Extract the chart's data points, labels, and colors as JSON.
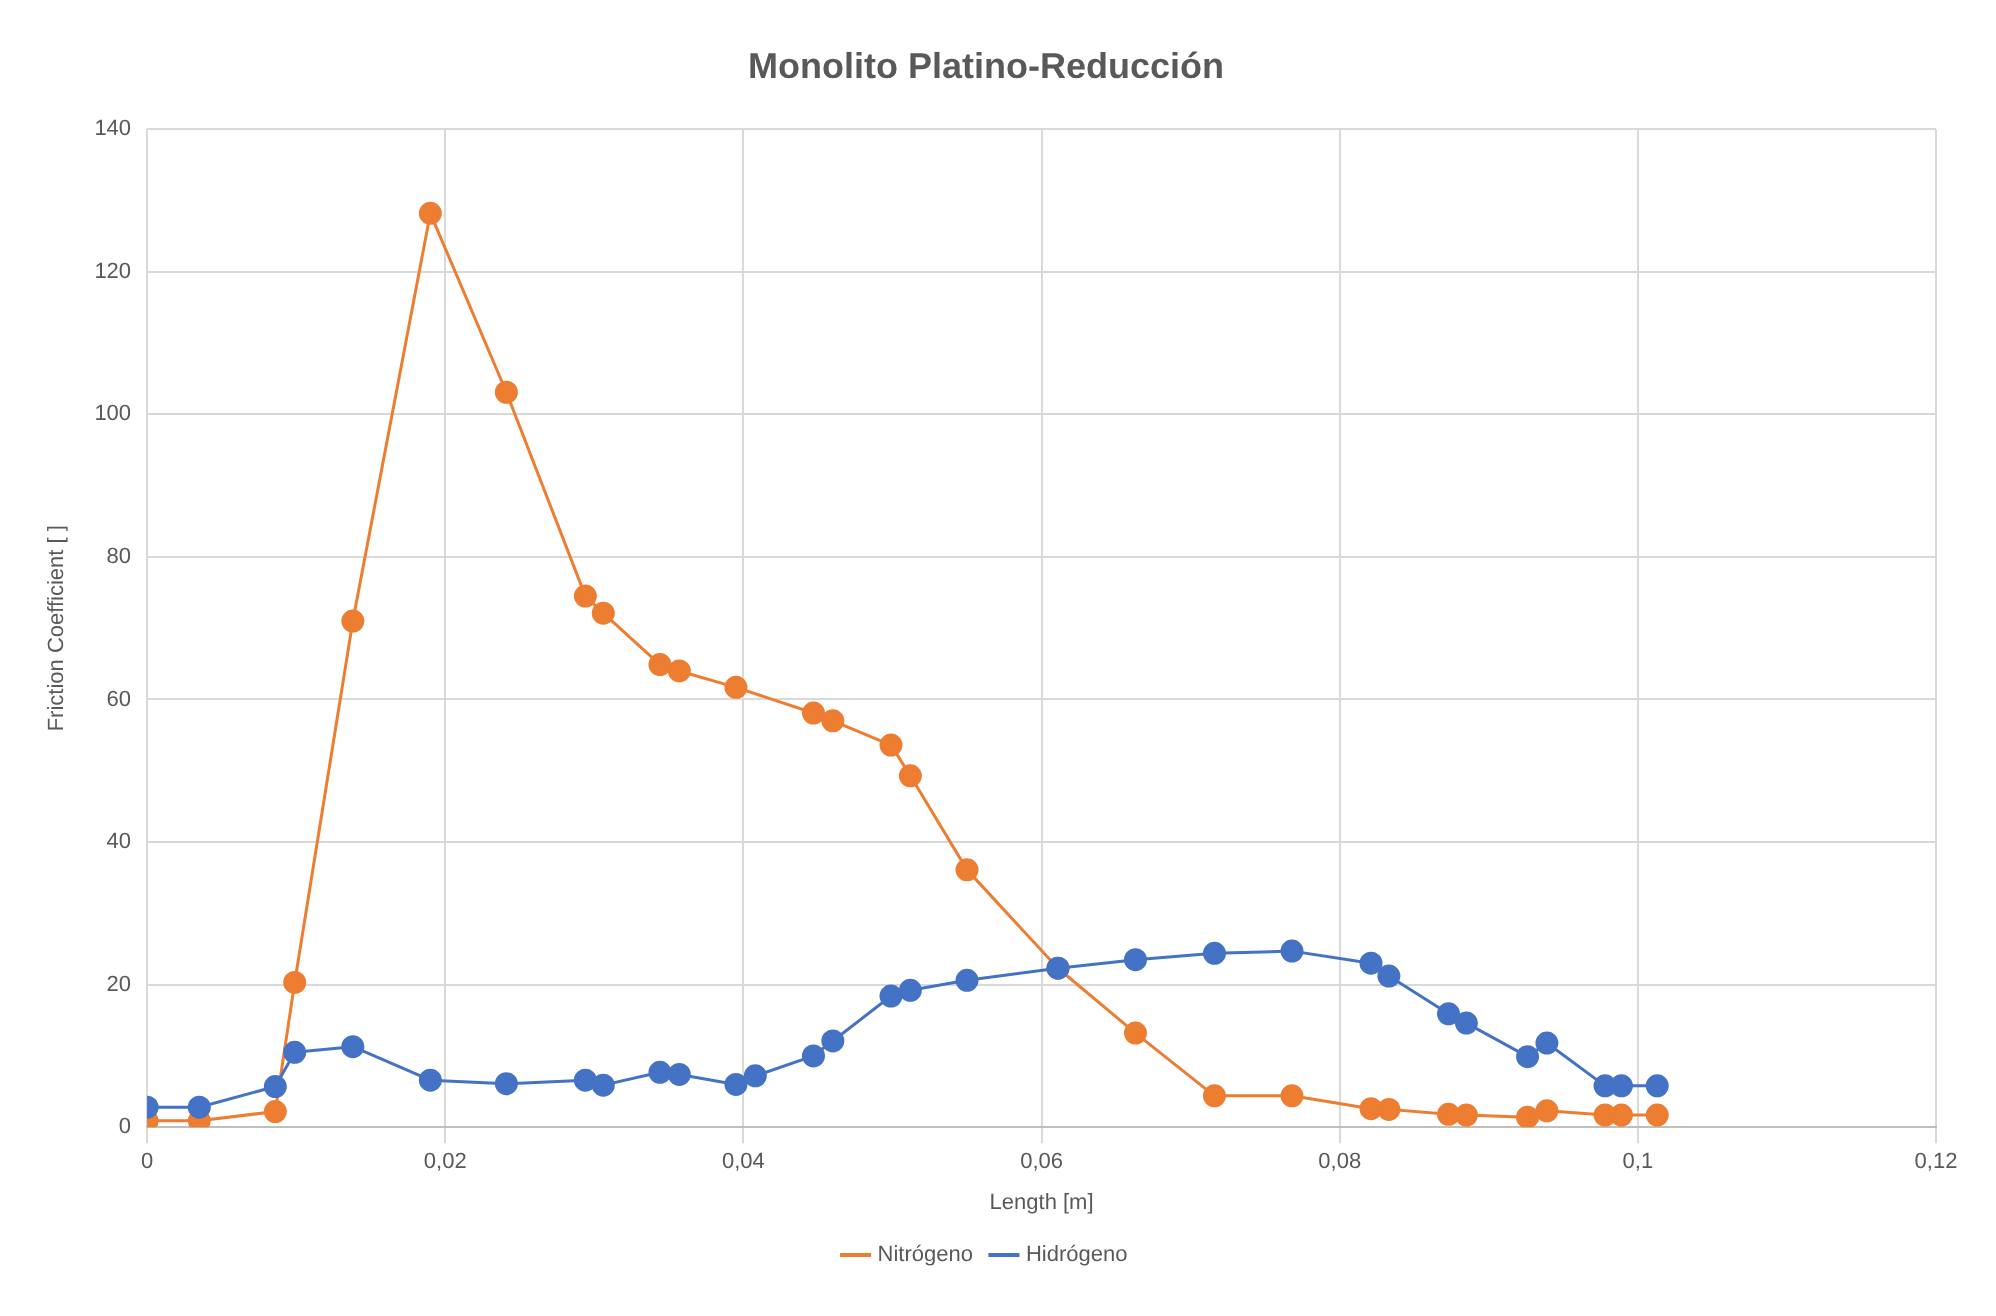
{
  "chart_data": {
    "type": "line",
    "title": "Monolito Platino-Reducción",
    "xlabel": "Length [m]",
    "ylabel": "Friction Coefficient [ ]",
    "xlim": [
      0,
      0.12
    ],
    "xticks": [
      0,
      {
        "value": 0.02,
        "label": "0,02"
      },
      {
        "value": 0.04,
        "label": "0,04"
      },
      {
        "value": 0.06,
        "label": "0,06"
      },
      {
        "value": 0.08,
        "label": "0,08"
      },
      {
        "value": 0.1,
        "label": "0,1"
      },
      {
        "value": 0.12,
        "label": "0,12"
      }
    ],
    "ylim": [
      0,
      140
    ],
    "yticks": [
      0,
      20,
      40,
      60,
      80,
      100,
      120,
      140
    ],
    "grid": true,
    "legend": "bottom",
    "marker": "circle",
    "line_style": "solid",
    "series": [
      {
        "name": "Nitrógeno",
        "color": "#ed7d31",
        "x": [
          0,
          0.0035,
          0.0086,
          0.0099,
          0.0138,
          0.019,
          0.0241,
          0.0294,
          0.0306,
          0.0344,
          0.0357,
          0.0395,
          0.0447,
          0.046,
          0.0499,
          0.0512,
          0.055,
          0.0611,
          0.0663,
          0.0716,
          0.0768,
          0.0821,
          0.0833,
          0.0873,
          0.0885,
          0.0926,
          0.0939,
          0.0978,
          0.0989,
          0.1013
        ],
        "values": [
          0.9,
          0.9,
          2.2,
          20.3,
          71,
          128.2,
          103.1,
          74.5,
          72.1,
          64.9,
          64,
          61.7,
          58.1,
          57,
          53.6,
          49.3,
          36.1,
          22.3,
          13.2,
          4.4,
          4.4,
          2.6,
          2.5,
          1.8,
          1.7,
          1.4,
          2.3,
          1.7,
          1.7,
          1.7
        ]
      },
      {
        "name": "Hidrógeno",
        "color": "#4472c4",
        "x": [
          0,
          0.0035,
          0.0086,
          0.0099,
          0.0138,
          0.019,
          0.0241,
          0.0294,
          0.0306,
          0.0344,
          0.0357,
          0.0395,
          0.0408,
          0.0447,
          0.046,
          0.0499,
          0.0512,
          0.055,
          0.0611,
          0.0663,
          0.0716,
          0.0768,
          0.0821,
          0.0833,
          0.0873,
          0.0885,
          0.0926,
          0.0939,
          0.0978,
          0.0989,
          0.1013
        ],
        "values": [
          2.8,
          2.8,
          5.7,
          10.5,
          11.3,
          6.6,
          6.1,
          6.6,
          5.9,
          7.7,
          7.4,
          6,
          7.2,
          10,
          12.1,
          18.4,
          19.2,
          20.6,
          22.3,
          23.5,
          24.4,
          24.7,
          23,
          21.2,
          15.9,
          14.6,
          9.9,
          11.8,
          5.8,
          5.8,
          5.8
        ]
      }
    ]
  }
}
